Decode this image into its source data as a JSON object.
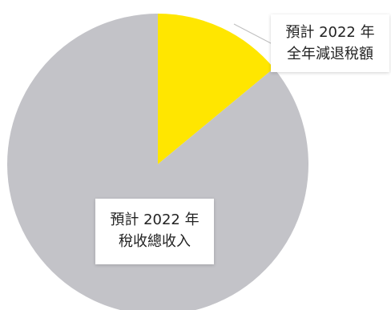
{
  "chart_data": {
    "type": "pie",
    "title": "",
    "slices": [
      {
        "label_lines": [
          "預計 2022 年",
          "全年減退稅額"
        ],
        "value": 14,
        "color": "#FFE600"
      },
      {
        "label_lines": [
          "預計 2022 年",
          "稅收總收入"
        ],
        "value": 86,
        "color": "#C3C3C8"
      }
    ],
    "start_angle_deg": 0,
    "direction": "clockwise"
  }
}
